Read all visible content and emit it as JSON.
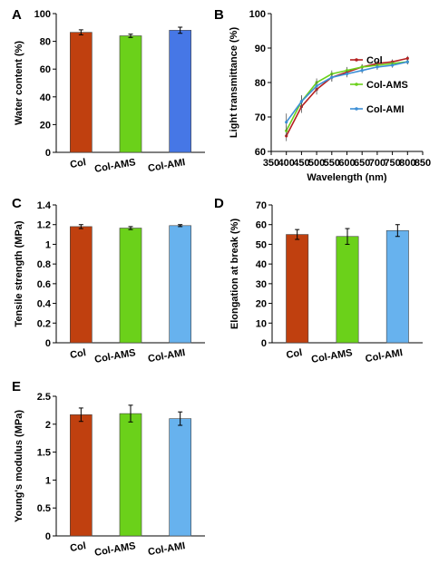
{
  "chart_data": [
    {
      "panel": "A",
      "type": "bar",
      "ylabel": "Water content (%)",
      "ylim": [
        0,
        100
      ],
      "yticks": [
        0,
        20,
        40,
        60,
        80,
        100
      ],
      "categories": [
        "Col",
        "Col-AMS",
        "Col-AMI"
      ],
      "values": [
        86.5,
        84,
        88
      ],
      "errors": [
        1.8,
        1.2,
        2.2
      ],
      "colors": [
        "#c0400f",
        "#6bd11a",
        "#4677e6"
      ]
    },
    {
      "panel": "B",
      "type": "line",
      "xlabel": "Wavelength (nm)",
      "ylabel": "Light transmittance (%)",
      "xlim": [
        350,
        850
      ],
      "xticks": [
        350,
        400,
        450,
        500,
        550,
        600,
        650,
        700,
        750,
        800,
        850
      ],
      "ylim": [
        60,
        100
      ],
      "yticks": [
        60,
        70,
        80,
        90,
        100
      ],
      "x": [
        400,
        450,
        500,
        550,
        600,
        650,
        700,
        750,
        800
      ],
      "series": [
        {
          "name": "Col",
          "color": "#b52020",
          "values": [
            64.5,
            73,
            78,
            81.5,
            83,
            84.5,
            85.5,
            86,
            87
          ],
          "errors": [
            1.5,
            1.8,
            1.5,
            1.2,
            1,
            0.8,
            0.8,
            0.7,
            0.7
          ]
        },
        {
          "name": "Col-AMS",
          "color": "#6bd11a",
          "values": [
            66,
            74.5,
            80,
            82.5,
            83.5,
            84.5,
            85,
            85.5,
            86
          ],
          "errors": [
            1.5,
            1.5,
            1.2,
            1,
            1,
            0.8,
            0.8,
            0.7,
            0.7
          ]
        },
        {
          "name": "Col-AMI",
          "color": "#3d8fd6",
          "values": [
            68.5,
            74.5,
            79,
            81.5,
            82.5,
            83.5,
            84.5,
            85,
            86
          ],
          "errors": [
            2.5,
            1.8,
            1.5,
            1.2,
            1,
            0.8,
            0.8,
            0.7,
            0.7
          ]
        }
      ],
      "legend": "right"
    },
    {
      "panel": "C",
      "type": "bar",
      "ylabel": "Tensile strength (MPa)",
      "ylim": [
        0,
        1.4
      ],
      "yticks": [
        0,
        0.2,
        0.4,
        0.6,
        0.8,
        1,
        1.2,
        1.4
      ],
      "categories": [
        "Col",
        "Col-AMS",
        "Col-AMI"
      ],
      "values": [
        1.18,
        1.165,
        1.19
      ],
      "errors": [
        0.02,
        0.015,
        0.01
      ],
      "colors": [
        "#c0400f",
        "#6bd11a",
        "#67b2ee"
      ]
    },
    {
      "panel": "D",
      "type": "bar",
      "ylabel": "Elongation at break (%)",
      "ylim": [
        0,
        70
      ],
      "yticks": [
        0,
        10,
        20,
        30,
        40,
        50,
        60,
        70
      ],
      "categories": [
        "Col",
        "Col-AMS",
        "Col-AMI"
      ],
      "values": [
        55,
        54,
        57
      ],
      "errors": [
        2.5,
        4,
        3
      ],
      "colors": [
        "#c0400f",
        "#6bd11a",
        "#67b2ee"
      ]
    },
    {
      "panel": "E",
      "type": "bar",
      "ylabel": "Young's modulus (MPa)",
      "ylim": [
        0,
        2.5
      ],
      "yticks": [
        0,
        0.5,
        1,
        1.5,
        2,
        2.5
      ],
      "categories": [
        "Col",
        "Col-AMS",
        "Col-AMI"
      ],
      "values": [
        2.17,
        2.19,
        2.1
      ],
      "errors": [
        0.12,
        0.15,
        0.12
      ],
      "colors": [
        "#c0400f",
        "#6bd11a",
        "#67b2ee"
      ]
    }
  ]
}
